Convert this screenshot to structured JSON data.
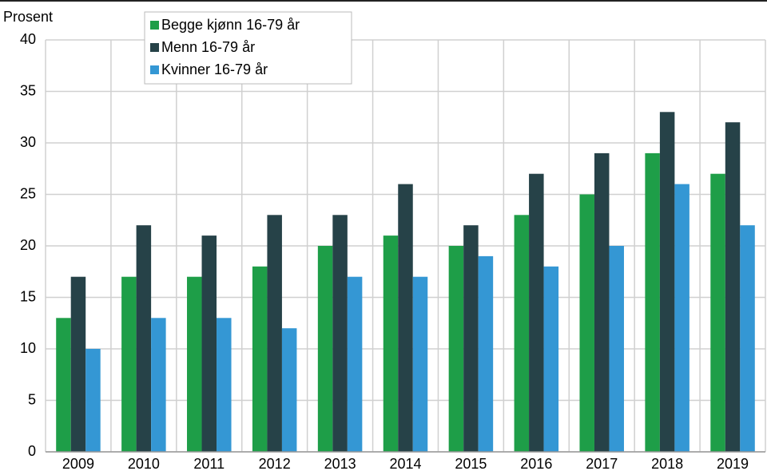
{
  "chart_data": {
    "type": "bar",
    "y_label": "Prosent",
    "categories": [
      "2009",
      "2010",
      "2011",
      "2012",
      "2013",
      "2014",
      "2015",
      "2016",
      "2017",
      "2018",
      "2019"
    ],
    "series": [
      {
        "name": "Begge kjønn 16-79 år",
        "color": "#1e9e48",
        "values": [
          13,
          17,
          17,
          18,
          20,
          21,
          20,
          23,
          25,
          29,
          27
        ]
      },
      {
        "name": "Menn 16-79 år",
        "color": "#264248",
        "values": [
          17,
          22,
          21,
          23,
          23,
          26,
          22,
          27,
          29,
          33,
          32
        ]
      },
      {
        "name": "Kvinner 16-79 år",
        "color": "#3497d4",
        "values": [
          10,
          13,
          13,
          12,
          17,
          17,
          19,
          18,
          20,
          26,
          22
        ]
      }
    ],
    "ylim": [
      0,
      40
    ],
    "yticks": [
      0,
      5,
      10,
      15,
      20,
      25,
      30,
      35,
      40
    ],
    "grid": true
  }
}
